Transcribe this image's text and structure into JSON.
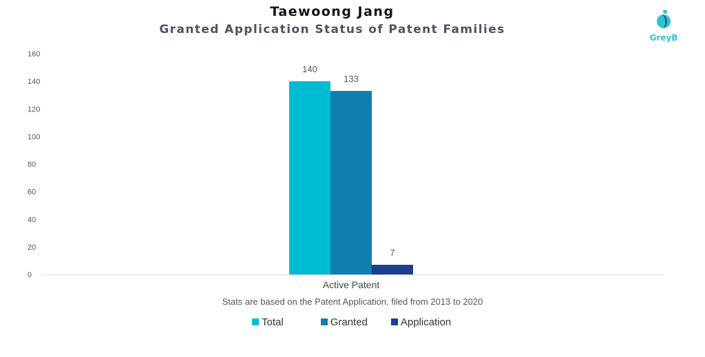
{
  "chart_data": {
    "type": "bar",
    "title": "Taewoong Jang",
    "subtitle": "Granted Application Status of Patent Families",
    "categories": [
      "Active Patent"
    ],
    "series": [
      {
        "name": "Total",
        "values": [
          140
        ],
        "color": "#00bcd0"
      },
      {
        "name": "Granted",
        "values": [
          133
        ],
        "color": "#0e7fae"
      },
      {
        "name": "Application",
        "values": [
          7
        ],
        "color": "#1b3f8c"
      }
    ],
    "ylim": [
      0,
      160
    ],
    "yticks": [
      0,
      20,
      40,
      60,
      80,
      100,
      120,
      140,
      160
    ],
    "grid": false,
    "legend": "bottom"
  },
  "footnote": "Stats are based on the Patent Application, filed from 2013 to 2020",
  "logo": {
    "text": "GreyB",
    "color": "#2ec4cf"
  }
}
